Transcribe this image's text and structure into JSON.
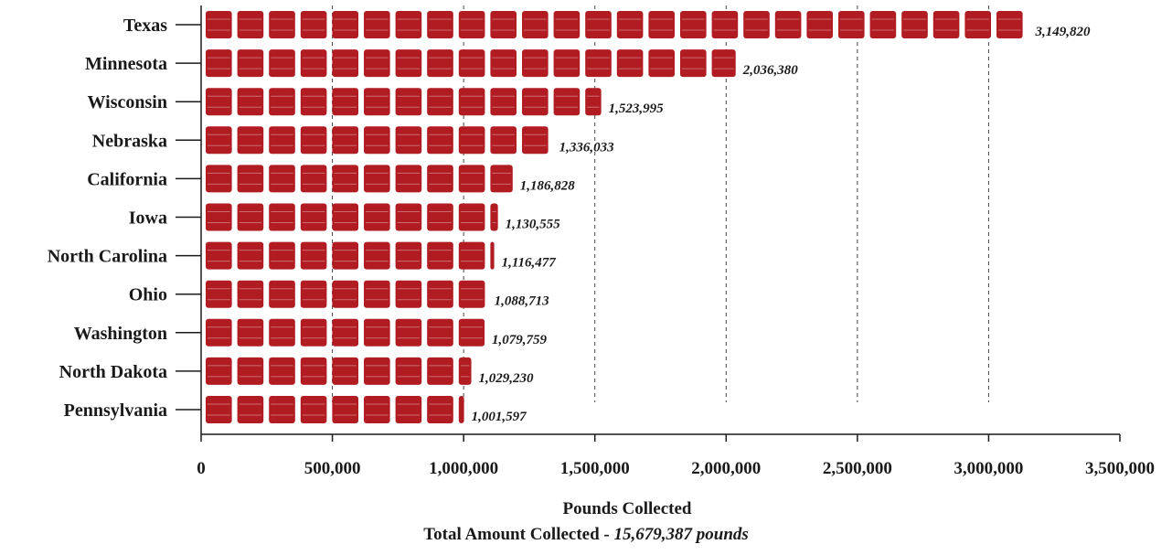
{
  "chart_data": {
    "type": "bar",
    "orientation": "horizontal",
    "categories": [
      "Texas",
      "Minnesota",
      "Wisconsin",
      "Nebraska",
      "California",
      "Iowa",
      "North Carolina",
      "Ohio",
      "Washington",
      "North Dakota",
      "Pennsylvania"
    ],
    "values": [
      3149820,
      2036380,
      1523995,
      1336033,
      1186828,
      1130555,
      1116477,
      1088713,
      1079759,
      1029230,
      1001597
    ],
    "value_labels": [
      "3,149,820",
      "2,036,380",
      "1,523,995",
      "1,336,033",
      "1,186,828",
      "1,130,555",
      "1,116,477",
      "1,088,713",
      "1,079,759",
      "1,029,230",
      "1,001,597"
    ],
    "xlim": [
      0,
      3500000
    ],
    "xticks": [
      0,
      500000,
      1000000,
      1500000,
      2000000,
      2500000,
      3000000,
      3500000
    ],
    "xtick_labels": [
      "0",
      "500,000",
      "1,000,000",
      "1,500,000",
      "2,000,000",
      "2,500,000",
      "3,000,000",
      "3,500,000"
    ],
    "xlabel": "Pounds Collected",
    "grid": "vertical dashed",
    "bar_style": "stacked barrel icons",
    "bar_color": "#b01c22"
  },
  "footer": {
    "prefix": "Total Amount Collected - ",
    "total": "15,679,387 pounds"
  }
}
